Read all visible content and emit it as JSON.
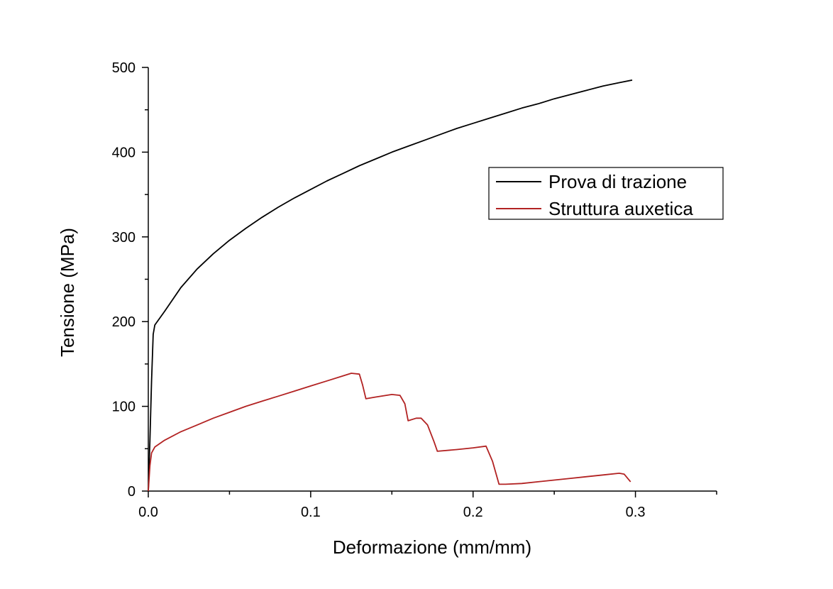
{
  "chart_data": {
    "type": "line",
    "title": "",
    "xlabel": "Deformazione (mm/mm)",
    "ylabel": "Tensione (MPa)",
    "xlim": [
      0,
      0.35
    ],
    "ylim": [
      0,
      500
    ],
    "x_ticks": [
      {
        "value": 0.0,
        "label": "0.0"
      },
      {
        "value": 0.1,
        "label": "0.1"
      },
      {
        "value": 0.2,
        "label": "0.2"
      },
      {
        "value": 0.3,
        "label": "0.3"
      }
    ],
    "y_ticks": [
      {
        "value": 0,
        "label": "0"
      },
      {
        "value": 100,
        "label": "100"
      },
      {
        "value": 200,
        "label": "200"
      },
      {
        "value": 300,
        "label": "300"
      },
      {
        "value": 400,
        "label": "400"
      },
      {
        "value": 500,
        "label": "500"
      }
    ],
    "grid": false,
    "legend_position": "top-right",
    "series": [
      {
        "name": "Prova di trazione",
        "color": "#000000",
        "points": [
          [
            0.0,
            0
          ],
          [
            0.001,
            60
          ],
          [
            0.002,
            130
          ],
          [
            0.003,
            185
          ],
          [
            0.004,
            196
          ],
          [
            0.01,
            212
          ],
          [
            0.02,
            240
          ],
          [
            0.03,
            262
          ],
          [
            0.04,
            280
          ],
          [
            0.05,
            296
          ],
          [
            0.06,
            310
          ],
          [
            0.07,
            323
          ],
          [
            0.08,
            335
          ],
          [
            0.09,
            346
          ],
          [
            0.1,
            356
          ],
          [
            0.11,
            366
          ],
          [
            0.12,
            375
          ],
          [
            0.13,
            384
          ],
          [
            0.14,
            392
          ],
          [
            0.15,
            400
          ],
          [
            0.16,
            407
          ],
          [
            0.17,
            414
          ],
          [
            0.18,
            421
          ],
          [
            0.19,
            428
          ],
          [
            0.2,
            434
          ],
          [
            0.21,
            440
          ],
          [
            0.22,
            446
          ],
          [
            0.23,
            452
          ],
          [
            0.24,
            457
          ],
          [
            0.25,
            463
          ],
          [
            0.26,
            468
          ],
          [
            0.27,
            473
          ],
          [
            0.28,
            478
          ],
          [
            0.29,
            482
          ],
          [
            0.298,
            485
          ]
        ]
      },
      {
        "name": "Struttura auxetica",
        "color": "#b22222",
        "points": [
          [
            0.0,
            0
          ],
          [
            0.001,
            30
          ],
          [
            0.002,
            45
          ],
          [
            0.004,
            52
          ],
          [
            0.01,
            60
          ],
          [
            0.02,
            70
          ],
          [
            0.03,
            78
          ],
          [
            0.04,
            86
          ],
          [
            0.05,
            93
          ],
          [
            0.06,
            100
          ],
          [
            0.07,
            106
          ],
          [
            0.08,
            112
          ],
          [
            0.09,
            118
          ],
          [
            0.1,
            124
          ],
          [
            0.11,
            130
          ],
          [
            0.12,
            136
          ],
          [
            0.125,
            139
          ],
          [
            0.13,
            138
          ],
          [
            0.132,
            125
          ],
          [
            0.134,
            109
          ],
          [
            0.14,
            111
          ],
          [
            0.15,
            114
          ],
          [
            0.155,
            113
          ],
          [
            0.158,
            103
          ],
          [
            0.16,
            83
          ],
          [
            0.165,
            86
          ],
          [
            0.168,
            86
          ],
          [
            0.172,
            78
          ],
          [
            0.176,
            58
          ],
          [
            0.178,
            47
          ],
          [
            0.19,
            49
          ],
          [
            0.2,
            51
          ],
          [
            0.208,
            53
          ],
          [
            0.212,
            35
          ],
          [
            0.216,
            8
          ],
          [
            0.22,
            8
          ],
          [
            0.23,
            9
          ],
          [
            0.24,
            11
          ],
          [
            0.25,
            13
          ],
          [
            0.26,
            15
          ],
          [
            0.27,
            17
          ],
          [
            0.28,
            19
          ],
          [
            0.29,
            21
          ],
          [
            0.293,
            20
          ],
          [
            0.297,
            11
          ]
        ]
      }
    ]
  }
}
